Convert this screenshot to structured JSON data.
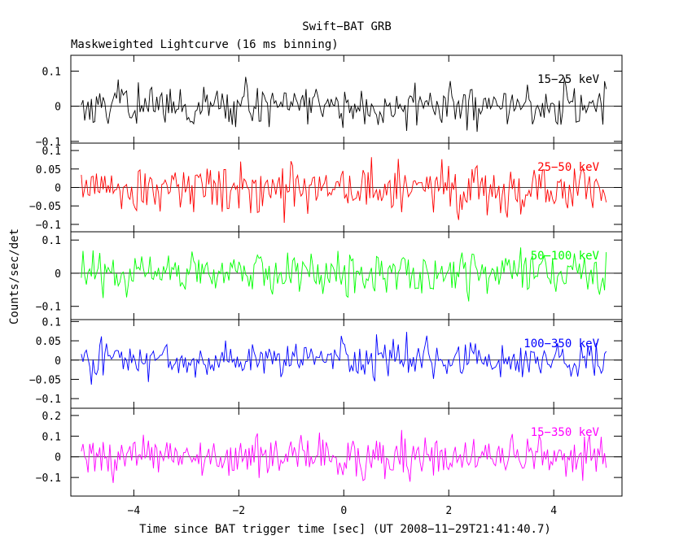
{
  "chart_data": {
    "type": "line",
    "title": "Swift−BAT GRB",
    "subtitle": "Maskweighted Lightcurve (16 ms binning)",
    "xlabel": "Time since BAT trigger time [sec] (UT 2008−11−29T21:41:40.7)",
    "ylabel": "Counts/sec/det",
    "xlim": [
      -5.2,
      5.3
    ],
    "xticks": [
      -4,
      -2,
      0,
      2,
      4
    ],
    "xtick_labels": [
      "−4",
      "−2",
      "0",
      "2",
      "4"
    ],
    "data_range": [
      -5.0,
      5.0
    ],
    "bin_seconds": 0.016,
    "panels": [
      {
        "name": "15-25 keV",
        "label": "15−25 keV",
        "color": "#000000",
        "ylim": [
          -0.105,
          0.145
        ],
        "amplitude": 0.045,
        "yticks": [
          0.1,
          0,
          -0.1
        ],
        "ytick_labels": [
          "0.1",
          "0",
          "−0.1"
        ]
      },
      {
        "name": "25-50 keV",
        "label": "25−50 keV",
        "color": "#ff0000",
        "ylim": [
          -0.12,
          0.12
        ],
        "amplitude": 0.045,
        "yticks": [
          0.1,
          0.05,
          0,
          -0.05,
          -0.1
        ],
        "ytick_labels": [
          "0.1",
          "0.05",
          "0",
          "−0.05",
          "−0.1"
        ]
      },
      {
        "name": "50-100 keV",
        "label": "50−100 keV",
        "color": "#00ff00",
        "ylim": [
          -0.14,
          0.125
        ],
        "amplitude": 0.045,
        "yticks": [
          0.1,
          0,
          -0.1
        ],
        "ytick_labels": [
          "0.1",
          "0",
          "−0.1"
        ]
      },
      {
        "name": "100-350 keV",
        "label": "100−350 keV",
        "color": "#0000ff",
        "ylim": [
          -0.125,
          0.105
        ],
        "amplitude": 0.035,
        "yticks": [
          0.1,
          0.05,
          0,
          -0.05,
          -0.1
        ],
        "ytick_labels": [
          "0.1",
          "0.05",
          "0",
          "−0.05",
          "−0.1"
        ]
      },
      {
        "name": "15-350 keV",
        "label": "15−350 keV",
        "color": "#ff00ff",
        "ylim": [
          -0.19,
          0.235
        ],
        "amplitude": 0.075,
        "yticks": [
          0.2,
          0.1,
          0,
          -0.1
        ],
        "ytick_labels": [
          "0.2",
          "0.1",
          "0",
          "−0.1"
        ]
      }
    ]
  }
}
